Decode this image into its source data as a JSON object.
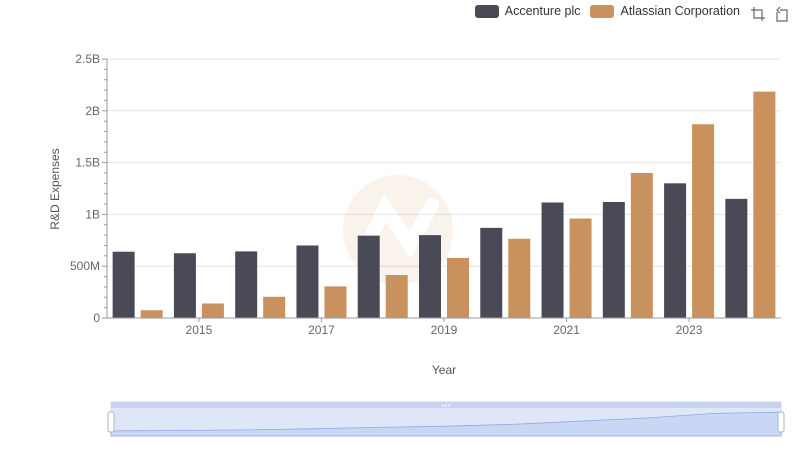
{
  "legend": {
    "items": [
      {
        "name": "Accenture plc",
        "color": "#4a4a57"
      },
      {
        "name": "Atlassian Corporation",
        "color": "#c8915d"
      }
    ]
  },
  "toolbox": {
    "icons": [
      "zoom-select-icon",
      "restore-icon"
    ]
  },
  "chart_data": {
    "type": "bar",
    "xlabel": "Year",
    "ylabel": "R&D Expenses",
    "categories": [
      "2014",
      "2015",
      "2016",
      "2017",
      "2018",
      "2019",
      "2020",
      "2021",
      "2022",
      "2023",
      "2024"
    ],
    "x_tick_labels": [
      "2015",
      "2017",
      "2019",
      "2021",
      "2023"
    ],
    "y_ticks": [
      0,
      500000000,
      1000000000,
      1500000000,
      2000000000,
      2500000000
    ],
    "y_tick_labels": [
      "0",
      "500M",
      "1B",
      "1.5B",
      "2B",
      "2.5B"
    ],
    "ylim": [
      0,
      2500000000
    ],
    "grid": true,
    "legend_position": "top-right",
    "series": [
      {
        "name": "Accenture plc",
        "color": "#4a4a57",
        "values": [
          640000000,
          625000000,
          643000000,
          700000000,
          795000000,
          800000000,
          870000000,
          1115000000,
          1120000000,
          1300000000,
          1150000000
        ]
      },
      {
        "name": "Atlassian Corporation",
        "color": "#c8915d",
        "values": [
          75000000,
          140000000,
          205000000,
          305000000,
          415000000,
          580000000,
          765000000,
          960000000,
          1400000000,
          1870000000,
          2185000000
        ]
      }
    ]
  }
}
